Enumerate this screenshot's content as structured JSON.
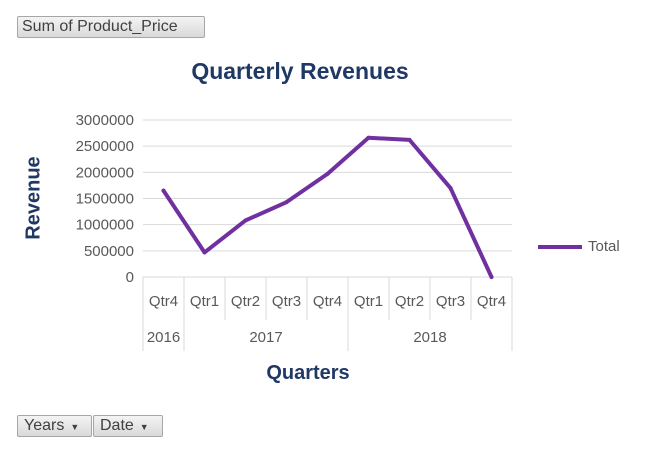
{
  "pivot": {
    "value_field": "Sum of Product_Price",
    "axis_fields": [
      {
        "label": "Years"
      },
      {
        "label": "Date"
      }
    ]
  },
  "chart_data": {
    "type": "line",
    "title": "Quarterly Revenues",
    "xlabel": "Quarters",
    "ylabel": "Revenue",
    "categories": [
      "Qtr4",
      "Qtr1",
      "Qtr2",
      "Qtr3",
      "Qtr4",
      "Qtr1",
      "Qtr2",
      "Qtr3",
      "Qtr4"
    ],
    "category_groups": [
      {
        "label": "2016",
        "count": 1
      },
      {
        "label": "2017",
        "count": 4
      },
      {
        "label": "2018",
        "count": 4
      }
    ],
    "series": [
      {
        "name": "Total",
        "color": "#7030a0",
        "values": [
          1650000,
          470000,
          1080000,
          1430000,
          1970000,
          2660000,
          2620000,
          1700000,
          0
        ]
      }
    ],
    "yticks": [
      "0",
      "500000",
      "1000000",
      "1500000",
      "2000000",
      "2500000",
      "3000000"
    ],
    "ylim": [
      0,
      3000000
    ],
    "grid": true,
    "legend_position": "right"
  }
}
